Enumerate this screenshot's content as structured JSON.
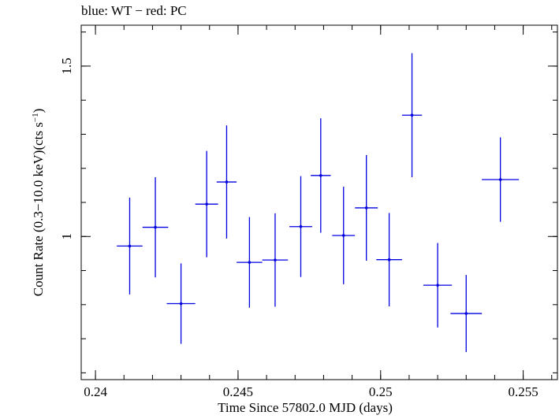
{
  "chart_data": {
    "type": "scatter",
    "title": "blue: WT − red: PC",
    "xlabel": "Time Since 57802.0 MJD (days)",
    "ylabel_main": "Count Rate (0.3−10.0 keV)(cts s",
    "ylabel_sup": "−1",
    "ylabel_end": ")",
    "xlim": [
      0.2395,
      0.2562
    ],
    "ylim": [
      0.58,
      1.62
    ],
    "xticks": [
      {
        "value": 0.24,
        "label": "0.24"
      },
      {
        "value": 0.245,
        "label": "0.245"
      },
      {
        "value": 0.25,
        "label": "0.25"
      },
      {
        "value": 0.255,
        "label": "0.255"
      }
    ],
    "yticks": [
      {
        "value": 1.0,
        "label": "1"
      },
      {
        "value": 1.5,
        "label": "1.5"
      }
    ],
    "x_minor_step": 0.001,
    "y_minor_step": 0.1,
    "colors": {
      "WT": "#0000e0",
      "axis": "#000000"
    },
    "series": [
      {
        "name": "WT",
        "points": [
          {
            "x": 0.2412,
            "xerr": 0.00045,
            "y": 0.972,
            "yerr": 0.142
          },
          {
            "x": 0.2421,
            "xerr": 0.00045,
            "y": 1.027,
            "yerr": 0.147
          },
          {
            "x": 0.243,
            "xerr": 0.0005,
            "y": 0.803,
            "yerr": 0.118
          },
          {
            "x": 0.2439,
            "xerr": 0.0004,
            "y": 1.095,
            "yerr": 0.156
          },
          {
            "x": 0.2446,
            "xerr": 0.00035,
            "y": 1.16,
            "yerr": 0.166
          },
          {
            "x": 0.2454,
            "xerr": 0.00045,
            "y": 0.924,
            "yerr": 0.133
          },
          {
            "x": 0.2463,
            "xerr": 0.00045,
            "y": 0.931,
            "yerr": 0.137
          },
          {
            "x": 0.2472,
            "xerr": 0.0004,
            "y": 1.029,
            "yerr": 0.148
          },
          {
            "x": 0.2479,
            "xerr": 0.00035,
            "y": 1.179,
            "yerr": 0.168
          },
          {
            "x": 0.2487,
            "xerr": 0.0004,
            "y": 1.003,
            "yerr": 0.143
          },
          {
            "x": 0.2495,
            "xerr": 0.0004,
            "y": 1.084,
            "yerr": 0.155
          },
          {
            "x": 0.2503,
            "xerr": 0.00045,
            "y": 0.932,
            "yerr": 0.137
          },
          {
            "x": 0.2511,
            "xerr": 0.00035,
            "y": 1.356,
            "yerr": 0.182
          },
          {
            "x": 0.252,
            "xerr": 0.0005,
            "y": 0.857,
            "yerr": 0.124
          },
          {
            "x": 0.253,
            "xerr": 0.00055,
            "y": 0.774,
            "yerr": 0.113
          },
          {
            "x": 0.2542,
            "xerr": 0.00065,
            "y": 1.167,
            "yerr": 0.124
          }
        ]
      }
    ]
  }
}
